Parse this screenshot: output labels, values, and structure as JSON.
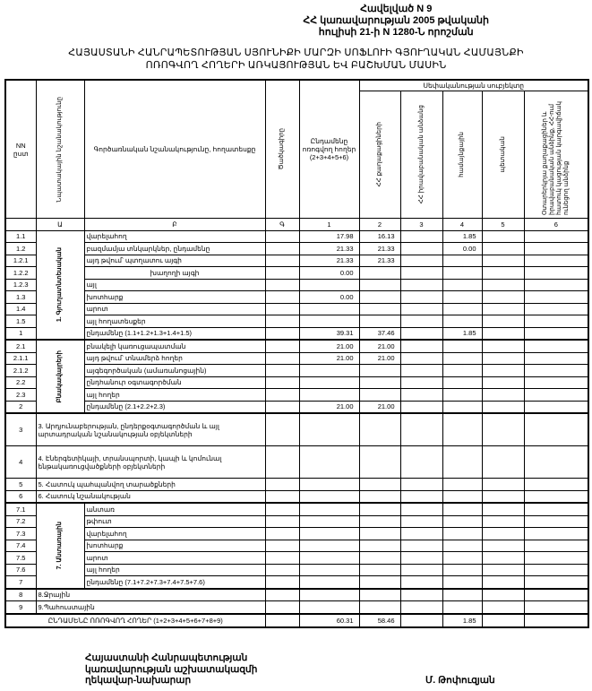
{
  "annex": {
    "line1": "Հավելված N 9",
    "line2": "ՀՀ կառավարության 2005 թվականի",
    "line3": "հուլիսի 21-ի N 1280-Ն որոշման"
  },
  "heading": {
    "line1": "ՀԱՅԱՍՏԱՆԻ ՀԱՆՐԱՊԵՏՈՒԹՅԱՆ ՍՅՈՒՆԻՔԻ ՄԱՐԶԻ ՍՈՖԼՈՒԻ ԳՅՈՒՂԱԿԱՆ ՀԱՄԱՅՆՔԻ",
    "line2": "ՈՌՈԳՎՈՂ ՀՈՂԵՐԻ ԱՌԿԱՅՈՒԹՅԱՆ ԵՎ ԲԱՇԽՄԱՆ ՄԱՍԻՆ"
  },
  "table": {
    "headers": {
      "nn": "NN ըստ",
      "group": "Նպատակային նշանակությունը",
      "desc": "Գործառնական նշանակությունը, հողատեսքը",
      "code": "Ծածկագիրը",
      "total": "Ընդամենը ոռոգվող հողեր (2+3+4+5+6)",
      "ownership": "Սեփականության սուբյեկտը",
      "c2": "ՀՀ քաղաքացիների",
      "c3": "ՀՀ իրավաբանական անձանց",
      "c4": "համայնքային",
      "c5": "պետական",
      "c6": "Օտարերկրյա քաղաքացիներ և իրավաբանական անձինք, ՀՀ-ում հատուկ կացության կարգավիճակ ունեցող անձինք"
    },
    "letters": [
      "",
      "Ա",
      "Բ",
      "Գ",
      "1",
      "2",
      "3",
      "4",
      "5",
      "6"
    ],
    "groups": [
      "1. Գյուղատնտեսական",
      "Բնակավայրերի",
      "7. Անտառային"
    ],
    "rows": [
      {
        "nn": "1.1",
        "group": 0,
        "desc": "վարելահող",
        "values": [
          "17.98",
          "16.13",
          "",
          "1.85",
          "",
          ""
        ]
      },
      {
        "nn": "1.2",
        "group": 0,
        "desc": "բազմամյա տնկարկներ, ընդամենը",
        "values": [
          "21.33",
          "21.33",
          "",
          "0.00",
          "",
          ""
        ]
      },
      {
        "nn": "1.2.1",
        "group": 0,
        "desc": "այդ թվում՝          պտղատու այգի",
        "values": [
          "21.33",
          "21.33",
          "",
          "",
          "",
          ""
        ]
      },
      {
        "nn": "1.2.2",
        "group": 0,
        "desc": "խաղողի այգի",
        "indent": true,
        "values": [
          "0.00",
          "",
          "",
          "",
          "",
          ""
        ]
      },
      {
        "nn": "1.2.3",
        "group": 0,
        "desc": "այլ",
        "values": [
          "",
          "",
          "",
          "",
          "",
          ""
        ]
      },
      {
        "nn": "1.3",
        "group": 0,
        "desc": "խոտհարք",
        "values": [
          "0.00",
          "",
          "",
          "",
          "",
          ""
        ]
      },
      {
        "nn": "1.4",
        "group": 0,
        "desc": "արոտ",
        "values": [
          "",
          "",
          "",
          "",
          "",
          ""
        ]
      },
      {
        "nn": "1.5",
        "group": 0,
        "desc": "այլ հողատեսքեր",
        "values": [
          "",
          "",
          "",
          "",
          "",
          ""
        ]
      },
      {
        "nn": "1",
        "group": 0,
        "desc": "ընդամենը (1.1+1.2+1.3+1.4+1.5)",
        "values": [
          "39.31",
          "37.46",
          "",
          "1.85",
          "",
          ""
        ]
      },
      {
        "nn": "2.1",
        "group": 1,
        "desc": "բնակելի կառուցապատման",
        "values": [
          "21.00",
          "21.00",
          "",
          "",
          "",
          ""
        ]
      },
      {
        "nn": "2.1.1",
        "group": 1,
        "desc": "այդ թվում՝ տնամերձ հողեր",
        "values": [
          "21.00",
          "21.00",
          "",
          "",
          "",
          ""
        ]
      },
      {
        "nn": "2.1.2",
        "group": 1,
        "desc": "այգեգործական (ամառանոցային)",
        "values": [
          "",
          "",
          "",
          "",
          "",
          ""
        ]
      },
      {
        "nn": "2.2",
        "group": 1,
        "desc": "ընդհանուր օգտագործման",
        "values": [
          "",
          "",
          "",
          "",
          "",
          ""
        ]
      },
      {
        "nn": "2.3",
        "group": 1,
        "desc": "այլ հողեր",
        "values": [
          "",
          "",
          "",
          "",
          "",
          ""
        ]
      },
      {
        "nn": "2",
        "group": 1,
        "desc": "ընդամենը (2.1+2.2+2.3)",
        "values": [
          "21.00",
          "21.00",
          "",
          "",
          "",
          ""
        ]
      },
      {
        "nn": "3",
        "tall": true,
        "desc": "3. Արդյունաբերության, ընդերքօգտագործման և այլ արտադրական նշանակության օբյեկտների",
        "values": [
          "",
          "",
          "",
          "",
          "",
          ""
        ]
      },
      {
        "nn": "4",
        "tall": true,
        "desc": "4. Էներգետիկայի, տրանսպորտի, կապի և կոմունալ ենթակառուցվածքների օբյեկտների",
        "values": [
          "",
          "",
          "",
          "",
          "",
          ""
        ]
      },
      {
        "nn": "5",
        "desc": "5. Հատուկ պահպանվող տարածքների",
        "values": [
          "",
          "",
          "",
          "",
          "",
          ""
        ]
      },
      {
        "nn": "6",
        "desc": "6. Հատուկ նշանակության",
        "values": [
          "",
          "",
          "",
          "",
          "",
          ""
        ]
      },
      {
        "nn": "7.1",
        "group": 2,
        "desc": "անտառ",
        "values": [
          "",
          "",
          "",
          "",
          "",
          ""
        ]
      },
      {
        "nn": "7.2",
        "group": 2,
        "desc": "թփուտ",
        "values": [
          "",
          "",
          "",
          "",
          "",
          ""
        ]
      },
      {
        "nn": "7.3",
        "group": 2,
        "desc": "վարելահող",
        "values": [
          "",
          "",
          "",
          "",
          "",
          ""
        ]
      },
      {
        "nn": "7.4",
        "group": 2,
        "desc": "խոտհարք",
        "values": [
          "",
          "",
          "",
          "",
          "",
          ""
        ]
      },
      {
        "nn": "7.5",
        "group": 2,
        "desc": "արոտ",
        "values": [
          "",
          "",
          "",
          "",
          "",
          ""
        ]
      },
      {
        "nn": "7.6",
        "group": 2,
        "desc": "այլ հողեր",
        "values": [
          "",
          "",
          "",
          "",
          "",
          ""
        ]
      },
      {
        "nn": "7",
        "group": 2,
        "desc": "ընդամենը (7.1+7.2+7.3+7.4+7.5+7.6)",
        "values": [
          "",
          "",
          "",
          "",
          "",
          ""
        ]
      },
      {
        "nn": "8",
        "desc": "8.Ջրային",
        "values": [
          "",
          "",
          "",
          "",
          "",
          ""
        ]
      },
      {
        "nn": "9",
        "desc": "9.Պահուստային",
        "values": [
          "",
          "",
          "",
          "",
          "",
          ""
        ]
      }
    ],
    "total_row": {
      "label": "ԸՆԴԱՄԵՆԸ ՈՌՈԳՎՈՂ ՀՈՂԵՐ (1+2+3+4+5+6+7+8+9)",
      "values": [
        "60.31",
        "58.46",
        "",
        "1.85",
        "",
        ""
      ]
    }
  },
  "signature": {
    "line1": "Հայաստանի Հանրապետության",
    "line2": "կառավարության աշխատակազմի",
    "line3": "ղեկավար-նախարար",
    "name": "Մ. Թոփուզյան"
  }
}
